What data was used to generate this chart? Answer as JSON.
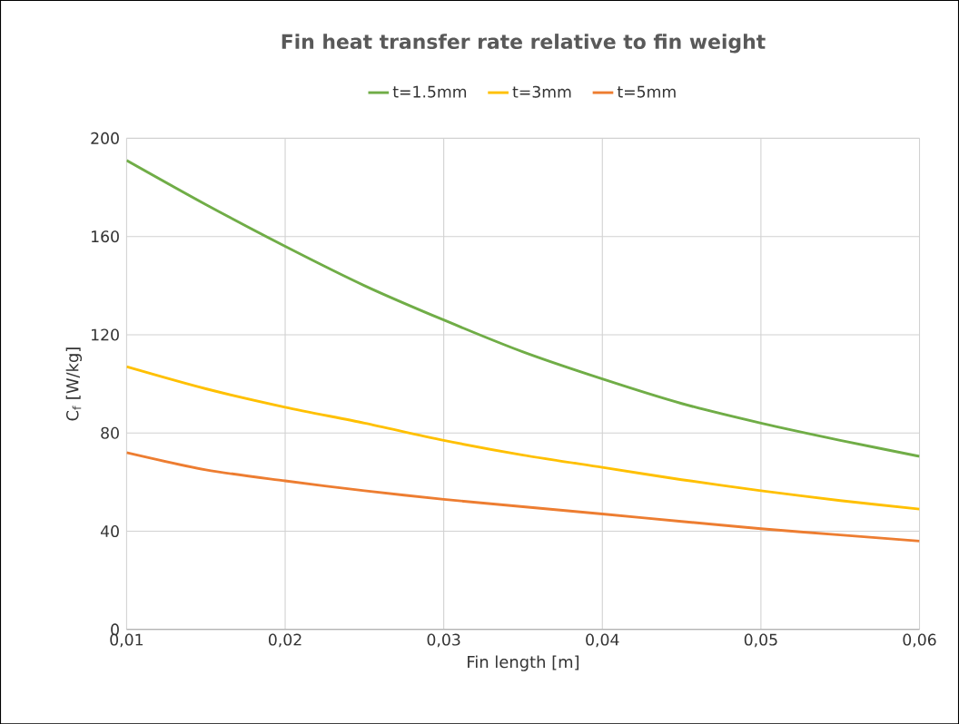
{
  "chart_data": {
    "type": "line",
    "title": "Fin heat transfer rate relative to fin weight",
    "xlabel": "Fin length [m]",
    "ylabel": "C$_{f}$ [W/kg]",
    "x": [
      0.01,
      0.015,
      0.02,
      0.025,
      0.03,
      0.035,
      0.04,
      0.045,
      0.05,
      0.055,
      0.06
    ],
    "series": [
      {
        "name": "t=1.5mm",
        "color": "#70ad47",
        "values": [
          191,
          173,
          156,
          140,
          126,
          113,
          102,
          92,
          84,
          77,
          70.5
        ]
      },
      {
        "name": "t=3mm",
        "color": "#ffc000",
        "values": [
          107,
          98,
          90.5,
          84,
          77,
          71,
          66,
          61,
          56.5,
          52.5,
          49
        ]
      },
      {
        "name": "t=5mm",
        "color": "#ed7d31",
        "values": [
          72,
          65,
          60.5,
          56.5,
          53,
          50,
          47,
          44,
          41,
          38.5,
          36
        ]
      }
    ],
    "xlim": [
      0.01,
      0.06
    ],
    "xticks": [
      {
        "value": 0.01,
        "label": "0,01"
      },
      {
        "value": 0.02,
        "label": "0,02"
      },
      {
        "value": 0.03,
        "label": "0,03"
      },
      {
        "value": 0.04,
        "label": "0,04"
      },
      {
        "value": 0.05,
        "label": "0,05"
      },
      {
        "value": 0.06,
        "label": "0,06"
      }
    ],
    "ylim": [
      0,
      200
    ],
    "yticks": [
      0,
      40,
      80,
      120,
      160,
      200
    ],
    "grid": true,
    "legend": "top",
    "marker": "none",
    "line_style": "solid"
  }
}
